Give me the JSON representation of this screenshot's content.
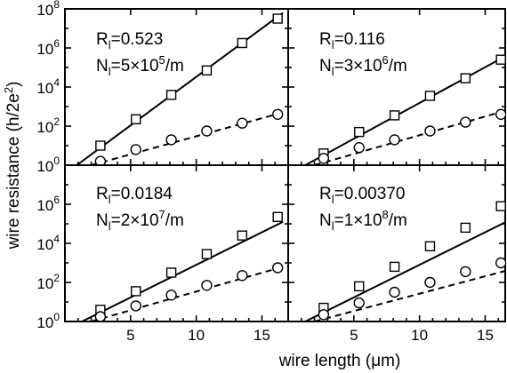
{
  "chart_data": {
    "type": "scatter",
    "xlabel_text": "wire length (",
    "xlabel_mu": "μ",
    "xlabel_unit": "m)",
    "ylabel_text": "wire resistance (h/2e",
    "ylabel_sup": "2",
    "ylabel_close": ")",
    "xlim": [
      0,
      17
    ],
    "ylim_exp": [
      0,
      8
    ],
    "y_scale": "log",
    "x_ticks": [
      5,
      10,
      15
    ],
    "y_ticks_exp": [
      0,
      2,
      4,
      6,
      8
    ],
    "y_tick_base": "10",
    "panels": [
      {
        "R_main": "R",
        "R_sub": "l",
        "R_value": "=0.523",
        "N_main": "N",
        "N_sub": "l",
        "N_value": "=5×10",
        "N_exp": "5",
        "N_unit": "/m",
        "ytick_exps_shown": [
          0,
          2,
          4,
          6,
          8
        ],
        "squares": [
          [
            2.7,
            1.0
          ],
          [
            5.4,
            2.35
          ],
          [
            8.1,
            3.6
          ],
          [
            10.8,
            4.85
          ],
          [
            13.5,
            6.25
          ],
          [
            16.2,
            7.5
          ]
        ],
        "circles": [
          [
            2.7,
            0.2
          ],
          [
            5.4,
            0.8
          ],
          [
            8.1,
            1.3
          ],
          [
            10.8,
            1.75
          ],
          [
            13.5,
            2.15
          ],
          [
            16.2,
            2.6
          ]
        ],
        "fit_solid": [
          [
            0.9,
            0.0
          ],
          [
            16.6,
            7.8
          ]
        ],
        "fit_dashed": [
          [
            2.0,
            0.0
          ],
          [
            16.6,
            2.7
          ]
        ]
      },
      {
        "R_main": "R",
        "R_sub": "l",
        "R_value": "=0.116",
        "N_main": "N",
        "N_sub": "l",
        "N_value": "=3×10",
        "N_exp": "6",
        "N_unit": "/m",
        "ytick_exps_shown": [],
        "squares": [
          [
            2.7,
            0.6
          ],
          [
            5.4,
            1.7
          ],
          [
            8.1,
            2.55
          ],
          [
            10.8,
            3.55
          ],
          [
            13.5,
            4.45
          ],
          [
            16.2,
            5.4
          ]
        ],
        "circles": [
          [
            2.7,
            0.35
          ],
          [
            5.4,
            0.9
          ],
          [
            8.1,
            1.3
          ],
          [
            10.8,
            1.75
          ],
          [
            13.5,
            2.2
          ],
          [
            16.2,
            2.6
          ]
        ],
        "fit_solid": [
          [
            1.3,
            0.0
          ],
          [
            16.6,
            5.6
          ]
        ],
        "fit_dashed": [
          [
            2.0,
            0.0
          ],
          [
            16.6,
            2.8
          ]
        ]
      },
      {
        "R_main": "R",
        "R_sub": "l",
        "R_value": "=0.0184",
        "N_main": "N",
        "N_sub": "l",
        "N_value": "=2×10",
        "N_exp": "7",
        "N_unit": "/m",
        "ytick_exps_shown": [
          0,
          2,
          4,
          6
        ],
        "squares": [
          [
            2.7,
            0.6
          ],
          [
            5.4,
            1.55
          ],
          [
            8.1,
            2.5
          ],
          [
            10.8,
            3.45
          ],
          [
            13.5,
            4.4
          ],
          [
            16.2,
            5.35
          ]
        ],
        "circles": [
          [
            2.7,
            0.25
          ],
          [
            5.4,
            0.8
          ],
          [
            8.1,
            1.35
          ],
          [
            10.8,
            1.85
          ],
          [
            13.5,
            2.35
          ],
          [
            16.2,
            2.75
          ]
        ],
        "fit_solid": [
          [
            1.3,
            0.0
          ],
          [
            16.6,
            5.1
          ]
        ],
        "fit_dashed": [
          [
            2.0,
            0.0
          ],
          [
            16.6,
            2.8
          ]
        ]
      },
      {
        "R_main": "R",
        "R_sub": "l",
        "R_value": "=0.00370",
        "N_main": "N",
        "N_sub": "l",
        "N_value": "=1×10",
        "N_exp": "8",
        "N_unit": "/m",
        "ytick_exps_shown": [],
        "squares": [
          [
            2.7,
            0.7
          ],
          [
            5.4,
            1.8
          ],
          [
            8.1,
            2.8
          ],
          [
            10.8,
            3.85
          ],
          [
            13.5,
            4.8
          ],
          [
            16.2,
            5.9
          ]
        ],
        "circles": [
          [
            2.7,
            0.35
          ],
          [
            5.4,
            0.95
          ],
          [
            8.1,
            1.5
          ],
          [
            10.8,
            2.0
          ],
          [
            13.5,
            2.55
          ],
          [
            16.2,
            3.0
          ]
        ],
        "fit_solid": [
          [
            1.3,
            0.0
          ],
          [
            16.6,
            5.1
          ]
        ],
        "fit_dashed": [
          [
            2.0,
            0.0
          ],
          [
            16.6,
            2.6
          ]
        ]
      }
    ]
  }
}
